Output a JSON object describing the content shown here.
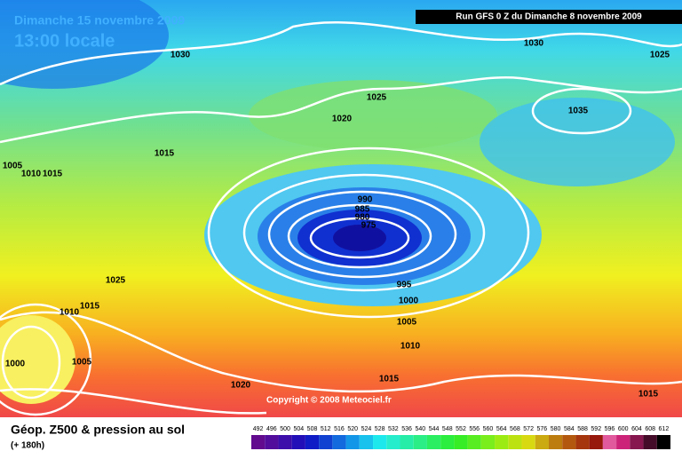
{
  "header": {
    "date": "Dimanche 15 novembre 2009",
    "time": "13:00 locale",
    "run": "Run GFS 0 Z du Dimanche 8 novembre 2009"
  },
  "isobar_labels": [
    "1030",
    "1030",
    "1025",
    "1025",
    "1020",
    "1035",
    "1015",
    "1005",
    "1010",
    "1015",
    "990",
    "985",
    "980",
    "975",
    "1025",
    "1015",
    "1010",
    "995",
    "1000",
    "1005",
    "1010",
    "1015",
    "1000",
    "1005",
    "1020",
    "1015"
  ],
  "copyright": "Copyright © 2008 Meteociel.fr",
  "legend": {
    "title": "Géop. Z500 & pression au sol",
    "subtitle": "(+ 180h)",
    "scale": [
      492,
      496,
      500,
      504,
      508,
      512,
      516,
      520,
      524,
      528,
      532,
      536,
      540,
      544,
      548,
      552,
      556,
      560,
      564,
      568,
      572,
      576,
      580,
      584,
      588,
      592,
      596,
      600,
      604,
      608,
      612
    ]
  }
}
